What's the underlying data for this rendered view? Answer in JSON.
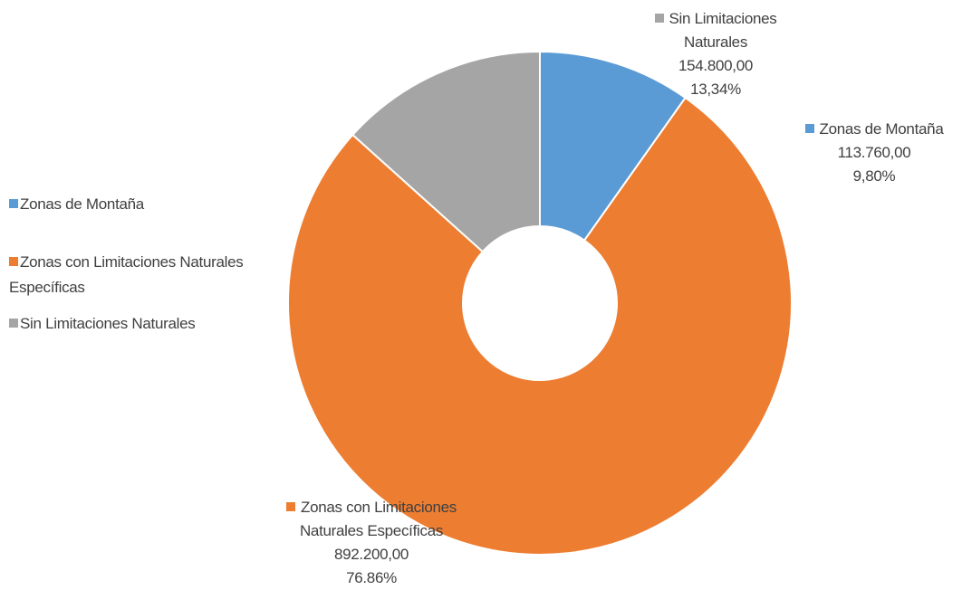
{
  "chart_data": {
    "type": "donut",
    "categories": [
      "Zonas de Montaña",
      "Zonas con Limitaciones Naturales Específicas",
      "Sin Limitaciones Naturales"
    ],
    "values": [
      113760,
      892200,
      154800
    ],
    "value_labels": [
      "113.760,00",
      "892.200,00",
      "154.800,00"
    ],
    "percent_labels": [
      "9,80%",
      "76.86%",
      "13,34%"
    ],
    "colors": [
      "#5b9bd5",
      "#ed7d31",
      "#a5a5a5"
    ],
    "legend": "left"
  }
}
